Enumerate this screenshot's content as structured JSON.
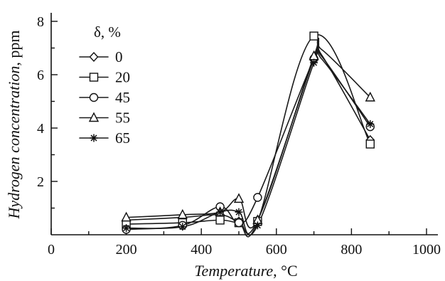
{
  "chart_data": {
    "type": "line",
    "xlabel_italic": "Temperature",
    "xlabel_unit": ", °C",
    "ylabel_italic": "Hydrogen concentration",
    "ylabel_unit": ", ppm",
    "xlim": [
      0,
      1000
    ],
    "ylim": [
      0,
      8
    ],
    "xticks": [
      0,
      200,
      400,
      600,
      800,
      1000
    ],
    "yticks": [
      2,
      4,
      6,
      8
    ],
    "xtick_labels": [
      "0",
      "200",
      "400",
      "600",
      "800",
      "1000"
    ],
    "ytick_labels": [
      "2",
      "4",
      "6",
      "8"
    ],
    "grid": false,
    "legend_title": "δ, %",
    "legend_position": "top-left",
    "series": [
      {
        "name": "0",
        "marker": "diamond",
        "points": [
          [
            200,
            0.55
          ],
          [
            350,
            0.65
          ],
          [
            450,
            0.75
          ],
          [
            500,
            0.5
          ],
          [
            550,
            0.55
          ],
          [
            700,
            6.6
          ],
          [
            720,
            6.75
          ],
          [
            850,
            3.55
          ]
        ]
      },
      {
        "name": "20",
        "marker": "square",
        "points": [
          [
            200,
            0.4
          ],
          [
            350,
            0.45
          ],
          [
            450,
            0.55
          ],
          [
            500,
            0.45
          ],
          [
            550,
            0.5
          ],
          [
            700,
            7.45
          ],
          [
            850,
            3.4
          ]
        ]
      },
      {
        "name": "45",
        "marker": "circle",
        "points": [
          [
            200,
            0.2
          ],
          [
            350,
            0.35
          ],
          [
            450,
            1.05
          ],
          [
            500,
            0.45
          ],
          [
            550,
            1.4
          ],
          [
            700,
            6.6
          ],
          [
            720,
            6.7
          ],
          [
            850,
            4.05
          ]
        ]
      },
      {
        "name": "55",
        "marker": "triangle",
        "points": [
          [
            200,
            0.65
          ],
          [
            350,
            0.75
          ],
          [
            450,
            0.85
          ],
          [
            500,
            1.35
          ],
          [
            550,
            0.55
          ],
          [
            700,
            6.7
          ],
          [
            720,
            6.95
          ],
          [
            850,
            5.15
          ]
        ]
      },
      {
        "name": "65",
        "marker": "star",
        "points": [
          [
            200,
            0.25
          ],
          [
            350,
            0.3
          ],
          [
            450,
            0.85
          ],
          [
            500,
            0.85
          ],
          [
            550,
            0.35
          ],
          [
            700,
            6.45
          ],
          [
            720,
            6.6
          ],
          [
            850,
            4.15
          ]
        ]
      }
    ]
  }
}
